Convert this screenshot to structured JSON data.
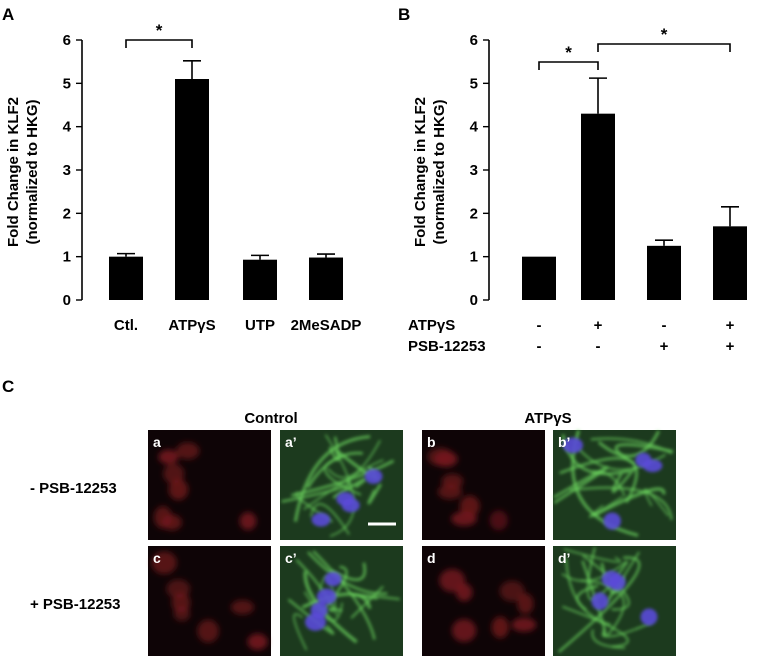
{
  "panels": {
    "a": "A",
    "b": "B",
    "c": "C"
  },
  "chart_data": [
    {
      "type": "bar",
      "panel": "A",
      "categories": [
        "Ctl.",
        "ATPγS",
        "UTP",
        "2MeSADP"
      ],
      "values": [
        1.0,
        5.1,
        0.93,
        0.98
      ],
      "errors": [
        0.07,
        0.42,
        0.1,
        0.08
      ],
      "ylabel_line1": "Fold Change in KLF2",
      "ylabel_line2": "(normalized to HKG)",
      "ylim": [
        0,
        6
      ],
      "yticks": [
        0,
        1,
        2,
        3,
        4,
        5,
        6
      ],
      "significance": [
        {
          "from": 0,
          "to": 1,
          "label": "*"
        }
      ]
    },
    {
      "type": "bar",
      "panel": "B",
      "values": [
        1.0,
        4.3,
        1.25,
        1.7
      ],
      "errors": [
        0.0,
        0.82,
        0.13,
        0.45
      ],
      "ylabel_line1": "Fold Change in KLF2",
      "ylabel_line2": "(normalized to HKG)",
      "ylim": [
        0,
        6
      ],
      "yticks": [
        0,
        1,
        2,
        3,
        4,
        5,
        6
      ],
      "conditions": [
        {
          "name": "ATPγS",
          "marks": [
            "-",
            "+",
            "-",
            "+"
          ]
        },
        {
          "name": "PSB-12253",
          "marks": [
            "-",
            "-",
            "+",
            "+"
          ]
        }
      ],
      "significance": [
        {
          "from": 0,
          "to": 1,
          "label": "*"
        },
        {
          "from": 1,
          "to": 3,
          "label": "*"
        }
      ]
    }
  ],
  "micrographs": {
    "col_headers": [
      "Control",
      "ATPγS"
    ],
    "row_labels": [
      "- PSB-12253",
      "+ PSB-12253"
    ],
    "tiles": [
      {
        "label": "a",
        "stain": "red"
      },
      {
        "label": "a’",
        "stain": "merge"
      },
      {
        "label": "b",
        "stain": "red"
      },
      {
        "label": "b’",
        "stain": "merge"
      },
      {
        "label": "c",
        "stain": "red"
      },
      {
        "label": "c’",
        "stain": "merge"
      },
      {
        "label": "d",
        "stain": "red"
      },
      {
        "label": "d’",
        "stain": "merge"
      }
    ]
  }
}
